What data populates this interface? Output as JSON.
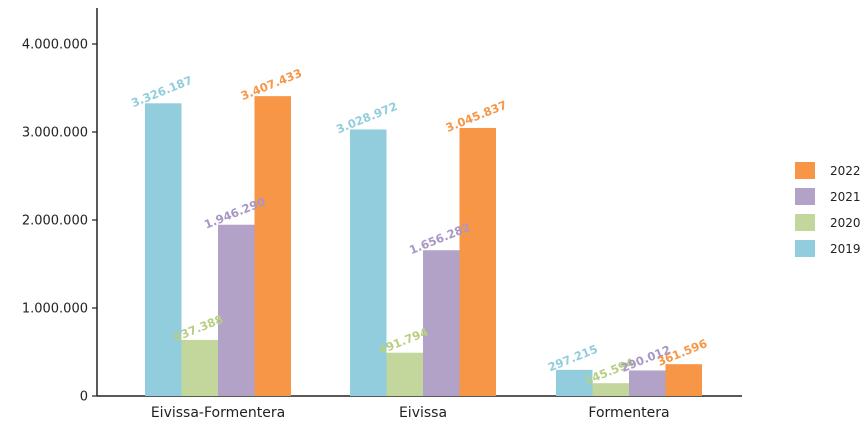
{
  "chart_data": {
    "type": "bar",
    "categories": [
      "Eivissa-Formentera",
      "Eivissa",
      "Formentera"
    ],
    "series": [
      {
        "name": "2019",
        "color": "#92cddd",
        "values": [
          3326187,
          3028972,
          297215
        ],
        "labels": [
          "3.326.187",
          "3.028.972",
          "297.215"
        ]
      },
      {
        "name": "2020",
        "color": "#c3d69b",
        "values": [
          637388,
          491794,
          145594
        ],
        "labels": [
          "637.388",
          "491.794",
          "145.594"
        ]
      },
      {
        "name": "2021",
        "color": "#b2a2c7",
        "values": [
          1946290,
          1656282,
          290012
        ],
        "labels": [
          "1.946.290",
          "1.656.282",
          "290.012"
        ]
      },
      {
        "name": "2022",
        "color": "#f79646",
        "values": [
          3407433,
          3045837,
          361596
        ],
        "labels": [
          "3.407.433",
          "3.045.837",
          "361.596"
        ]
      }
    ],
    "ylim": [
      0,
      4000000
    ],
    "yticks": [
      0,
      1000000,
      2000000,
      3000000,
      4000000
    ],
    "ytick_labels": [
      "0",
      "1.000.000",
      "2.000.000",
      "3.000.000",
      "4.000.000"
    ],
    "legend_order": [
      "2022",
      "2021",
      "2020",
      "2019"
    ],
    "legend_position": "right",
    "grid": false,
    "title": "",
    "xlabel": "",
    "ylabel": ""
  }
}
